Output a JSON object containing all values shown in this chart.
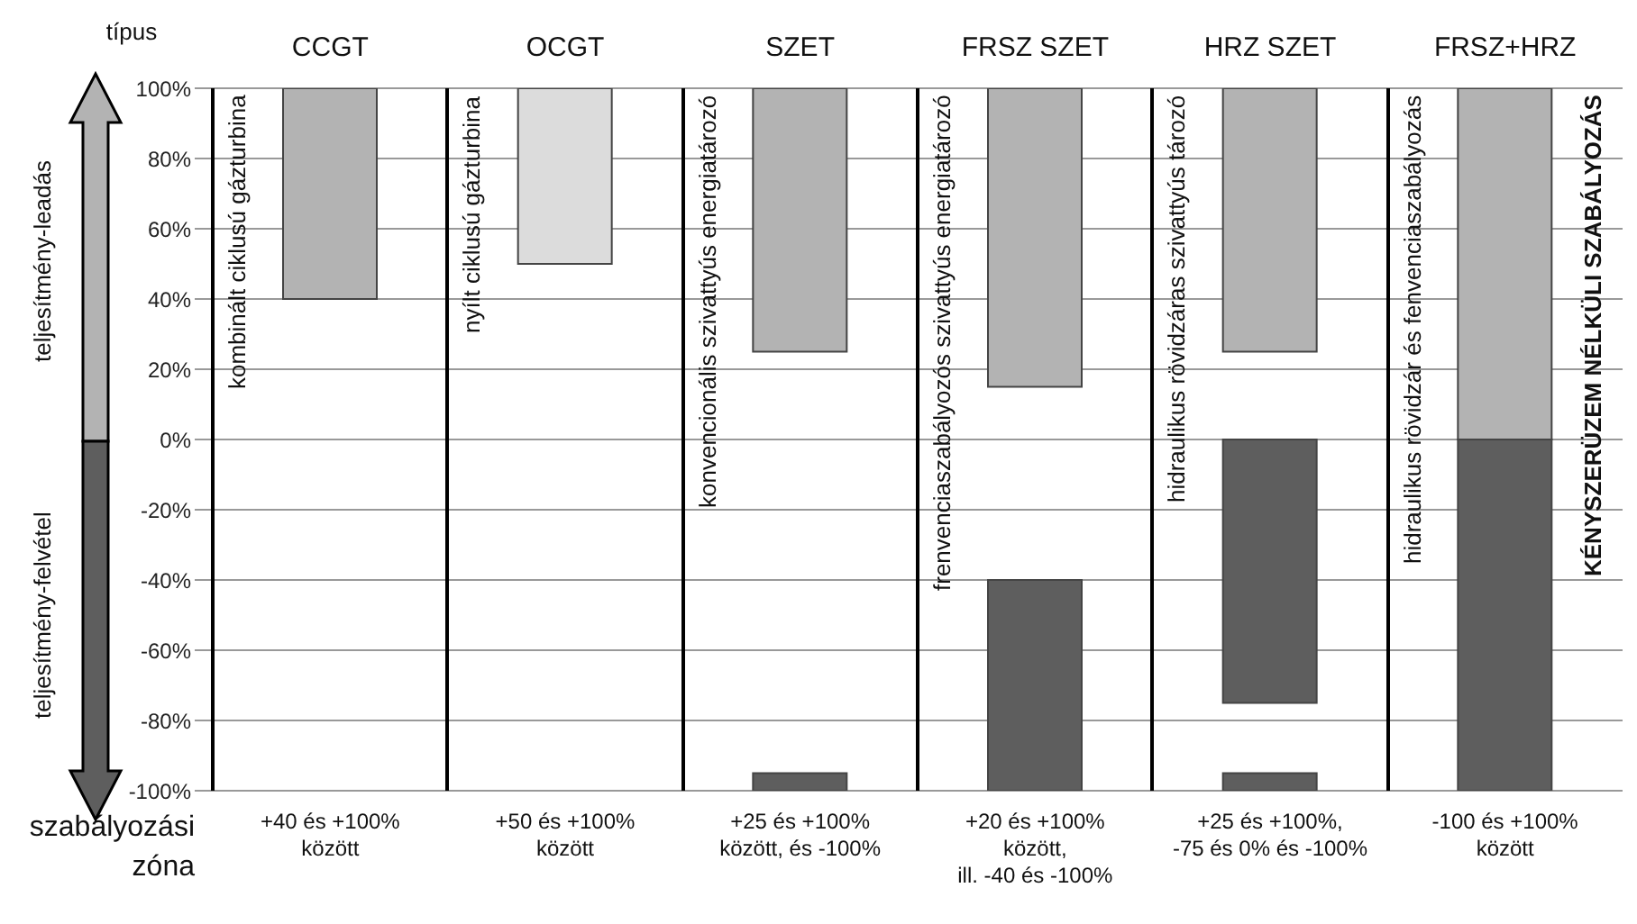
{
  "chart_data": {
    "type": "bar",
    "xlabel": "típus",
    "categories": [
      "CCGT",
      "OCGT",
      "SZET",
      "FRSZ SZET",
      "HRZ SZET",
      "FRSZ+HRZ"
    ],
    "series": [
      {
        "color": "#b3b3b3",
        "colors": [
          "#b3b3b3",
          "#dcdcdc",
          "#b3b3b3",
          "#b3b3b3",
          "#b3b3b3",
          "#b3b3b3"
        ],
        "values": [
          60,
          50,
          75,
          85,
          75,
          100
        ],
        "base": [
          40,
          50,
          25,
          15,
          25,
          0
        ]
      },
      {
        "color": "#5e5e5e",
        "values": [
          null,
          null,
          5,
          60,
          75,
          100
        ],
        "base": [
          null,
          null,
          -100,
          -100,
          -75,
          -100
        ]
      },
      {
        "color": "#5e5e5e",
        "values": [
          null,
          null,
          null,
          null,
          5,
          null
        ],
        "base": [
          null,
          null,
          null,
          null,
          -100,
          null
        ]
      }
    ],
    "ylim": [
      -100,
      100
    ],
    "yticks": [
      {
        "value": -100,
        "label": "-100%"
      },
      {
        "value": -80,
        "label": "-80%"
      },
      {
        "value": -60,
        "label": "-60%"
      },
      {
        "value": -40,
        "label": "-40%"
      },
      {
        "value": -20,
        "label": "-20%"
      },
      {
        "value": 0,
        "label": "0%"
      },
      {
        "value": 20,
        "label": "20%"
      },
      {
        "value": 40,
        "label": "40%"
      },
      {
        "value": 60,
        "label": "60%"
      },
      {
        "value": 80,
        "label": "80%"
      },
      {
        "value": 100,
        "label": "100%"
      }
    ],
    "grid": "y",
    "annotations": [
      "kombinált ciklusú gázturbina",
      "nyílt ciklusú gázturbina",
      "konvencionális szivattyús energiatározó",
      "frenvenciaszabályozós szivattyús energiatározó",
      "hidraulikus rövidzáras szivattyús tározó",
      "hidraulikus rövidzár és fenvenciaszabályozás",
      "+40 és +100%\nközött",
      "+50 és +100%\nközött",
      "+25 és +100%\nközött, és -100%",
      "+20 és +100%\nközött,\nill. -40 és -100%",
      "+25 és +100%,\n-75 és 0% és -100%",
      "-100 és +100%\nközött",
      "KÉNYSZERÜZEM NÉLKÜLI SZABÁLYOZÁS",
      "szabályozási\nzóna",
      "teljesítmény-leadás",
      "teljesítmény-felvétel"
    ]
  }
}
